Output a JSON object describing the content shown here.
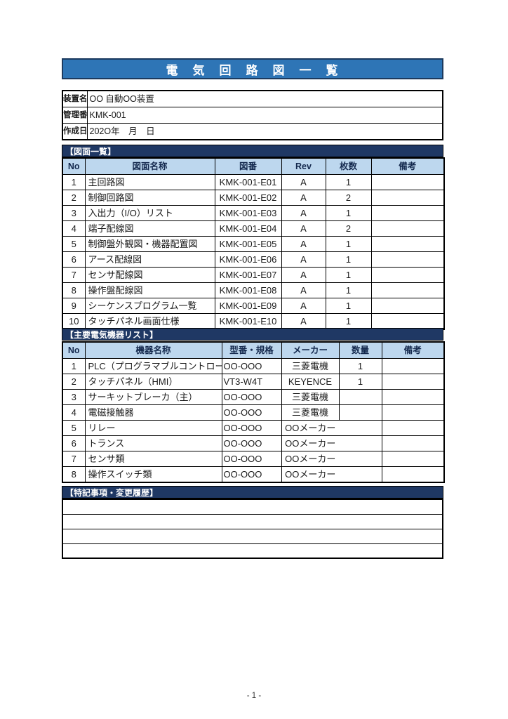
{
  "page": {
    "title": "電　気　回　路　図　一　覧",
    "footer": "- 1 -"
  },
  "colors": {
    "title_bar": "#2E75B6",
    "title_text": "#FFFFFF",
    "section_bar": "#1F3864",
    "column_header_fill": "#BDD7EE",
    "table_border": "#000000"
  },
  "info": {
    "rows": [
      {
        "label": "装置名",
        "value": "OO 自動OO装置"
      },
      {
        "label": "管理番",
        "value": "KMK-001"
      },
      {
        "label": "作成日",
        "value": "202O年　月　日"
      }
    ]
  },
  "drawings": {
    "section_title": "【図面一覧】",
    "headers": [
      "No",
      "図面名称",
      "図番",
      "Rev",
      "枚数",
      "備考"
    ],
    "rows": [
      {
        "no": "1",
        "name": "主回路図",
        "number": "KMK-001-E01",
        "rev": "A",
        "sheets": "1",
        "note": ""
      },
      {
        "no": "2",
        "name": "制御回路図",
        "number": "KMK-001-E02",
        "rev": "A",
        "sheets": "2",
        "note": ""
      },
      {
        "no": "3",
        "name": "入出力（I/O）リスト",
        "number": "KMK-001-E03",
        "rev": "A",
        "sheets": "1",
        "note": ""
      },
      {
        "no": "4",
        "name": "端子配線図",
        "number": "KMK-001-E04",
        "rev": "A",
        "sheets": "2",
        "note": ""
      },
      {
        "no": "5",
        "name": "制御盤外観図・機器配置図",
        "number": "KMK-001-E05",
        "rev": "A",
        "sheets": "1",
        "note": ""
      },
      {
        "no": "6",
        "name": "アース配線図",
        "number": "KMK-001-E06",
        "rev": "A",
        "sheets": "1",
        "note": ""
      },
      {
        "no": "7",
        "name": "センサ配線図",
        "number": "KMK-001-E07",
        "rev": "A",
        "sheets": "1",
        "note": ""
      },
      {
        "no": "8",
        "name": "操作盤配線図",
        "number": "KMK-001-E08",
        "rev": "A",
        "sheets": "1",
        "note": ""
      },
      {
        "no": "9",
        "name": "シーケンスプログラム一覧",
        "number": "KMK-001-E09",
        "rev": "A",
        "sheets": "1",
        "note": ""
      },
      {
        "no": "10",
        "name": "タッチパネル画面仕様",
        "number": "KMK-001-E10",
        "rev": "A",
        "sheets": "1",
        "note": ""
      }
    ]
  },
  "devices": {
    "section_title": "【主要電気機器リスト】",
    "headers": [
      "No",
      "機器名称",
      "型番・規格",
      "メーカー",
      "数量",
      "備考"
    ],
    "rows": [
      {
        "no": "1",
        "name": "PLC（プログラマブルコントロー",
        "model": "OO-OOO",
        "maker": "三菱電機",
        "qty": "1",
        "note": "",
        "maker_overflow": false
      },
      {
        "no": "2",
        "name": "タッチパネル（HMI）",
        "model": "VT3-W4T",
        "maker": "KEYENCE",
        "qty": "1",
        "note": "",
        "maker_overflow": false
      },
      {
        "no": "3",
        "name": "サーキットブレーカ（主）",
        "model": "OO-OOO",
        "maker": "三菱電機",
        "qty": "",
        "note": "",
        "maker_overflow": false
      },
      {
        "no": "4",
        "name": "電磁接触器",
        "model": "OO-OOO",
        "maker": "三菱電機",
        "qty": "",
        "note": "",
        "maker_overflow": false
      },
      {
        "no": "5",
        "name": "リレー",
        "model": "OO-OOO",
        "maker": "OOメーカー",
        "qty": "",
        "note": "",
        "maker_overflow": true
      },
      {
        "no": "6",
        "name": "トランス",
        "model": "OO-OOO",
        "maker": "OOメーカー",
        "qty": "",
        "note": "",
        "maker_overflow": true
      },
      {
        "no": "7",
        "name": "センサ類",
        "model": "OO-OOO",
        "maker": "OOメーカー",
        "qty": "",
        "note": "",
        "maker_overflow": true
      },
      {
        "no": "8",
        "name": "操作スイッチ類",
        "model": "OO-OOO",
        "maker": "OOメーカー",
        "qty": "",
        "note": "",
        "maker_overflow": true
      }
    ]
  },
  "notes": {
    "section_title": "【特記事項・変更履歴】",
    "rows": [
      "",
      "",
      "",
      ""
    ]
  }
}
